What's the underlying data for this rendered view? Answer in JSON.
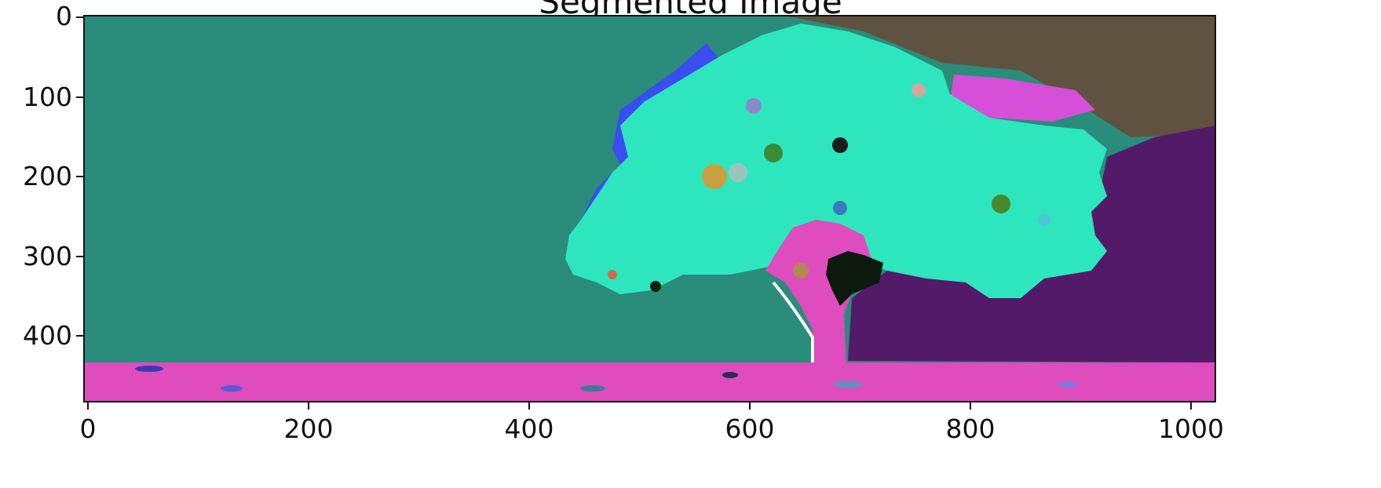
{
  "figure": {
    "title": "Segmented Image"
  },
  "axes": {
    "y_ticks": [
      "0",
      "100",
      "200",
      "300",
      "400"
    ],
    "x_ticks": [
      "0",
      "200",
      "400",
      "600",
      "800",
      "1000"
    ],
    "x_range": [
      0,
      1024
    ],
    "y_range": [
      0,
      484
    ]
  },
  "segment_colors": {
    "sky_left": "#2a8c7a",
    "sky_right": "#5f5240",
    "canopy": "#2ee6be",
    "trunk_ground": "#de4cbe",
    "right_region": "#541a6a",
    "edge_blue": "#3b4cf0",
    "dark_patch": "#0b1a0c",
    "magenta_patch": "#d64fd8"
  }
}
